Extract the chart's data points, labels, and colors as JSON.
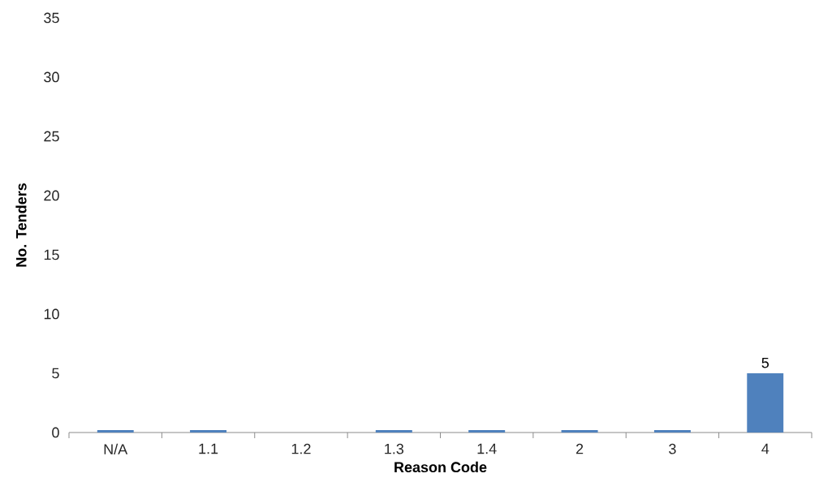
{
  "chart_data": {
    "type": "bar",
    "xlabel": "Reason Code",
    "ylabel": "No. Tenders",
    "categories": [
      "N/A",
      "1.1",
      "1.2",
      "1.3",
      "1.4",
      "2",
      "3",
      "4"
    ],
    "values": [
      0.2,
      0.2,
      0,
      0.2,
      0.2,
      0.2,
      0.2,
      5
    ],
    "value_labels": [
      null,
      null,
      null,
      null,
      null,
      null,
      null,
      "5"
    ],
    "color": "#4f81bd",
    "ylim": [
      0,
      35
    ],
    "yticks": [
      0,
      5,
      10,
      15,
      20,
      25,
      30,
      35
    ]
  }
}
